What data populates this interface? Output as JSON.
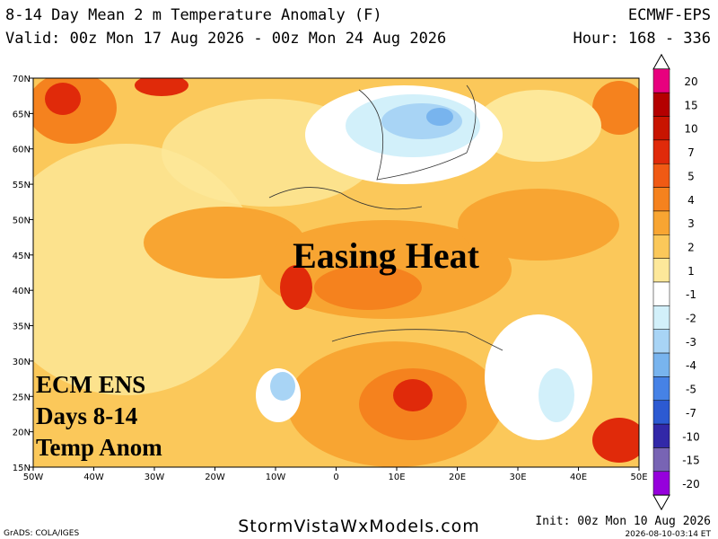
{
  "header": {
    "title": "8-14 Day Mean 2 m Temperature Anomaly (F)",
    "model": "ECMWF-EPS",
    "valid": "Valid: 00z Mon 17 Aug 2026 - 00z Mon 24 Aug 2026",
    "hour": "Hour: 168 - 336"
  },
  "map": {
    "lat_labels": [
      "70N",
      "65N",
      "60N",
      "55N",
      "50N",
      "45N",
      "40N",
      "35N",
      "30N",
      "25N",
      "20N",
      "15N"
    ],
    "lon_labels": [
      "50W",
      "40W",
      "30W",
      "20W",
      "10W",
      "0",
      "10E",
      "20E",
      "30E",
      "40E",
      "50E"
    ],
    "headline": "Easing Heat",
    "caption": [
      "ECM ENS",
      "Days 8-14",
      "Temp Anom"
    ]
  },
  "colorbar": {
    "labels": [
      "20",
      "15",
      "10",
      "7",
      "5",
      "4",
      "3",
      "2",
      "1",
      "-1",
      "-2",
      "-3",
      "-4",
      "-5",
      "-7",
      "-10",
      "-15",
      "-20"
    ],
    "colors": [
      "#e8007e",
      "#b40000",
      "#c81400",
      "#e02a0a",
      "#f05a14",
      "#f5821e",
      "#f8a532",
      "#fbc85a",
      "#fde89a",
      "#ffffff",
      "#d2f0fa",
      "#a8d4f5",
      "#78b4ee",
      "#4682e6",
      "#2c5ad2",
      "#3228a8",
      "#7864b4",
      "#9600dc"
    ]
  },
  "footer": {
    "grads": "GrADS: COLA/IGES",
    "site": "StormVistaWxModels.com",
    "init": "Init: 00z Mon 10 Aug 2026",
    "stamp": "2026-08-10-03:14 ET"
  }
}
